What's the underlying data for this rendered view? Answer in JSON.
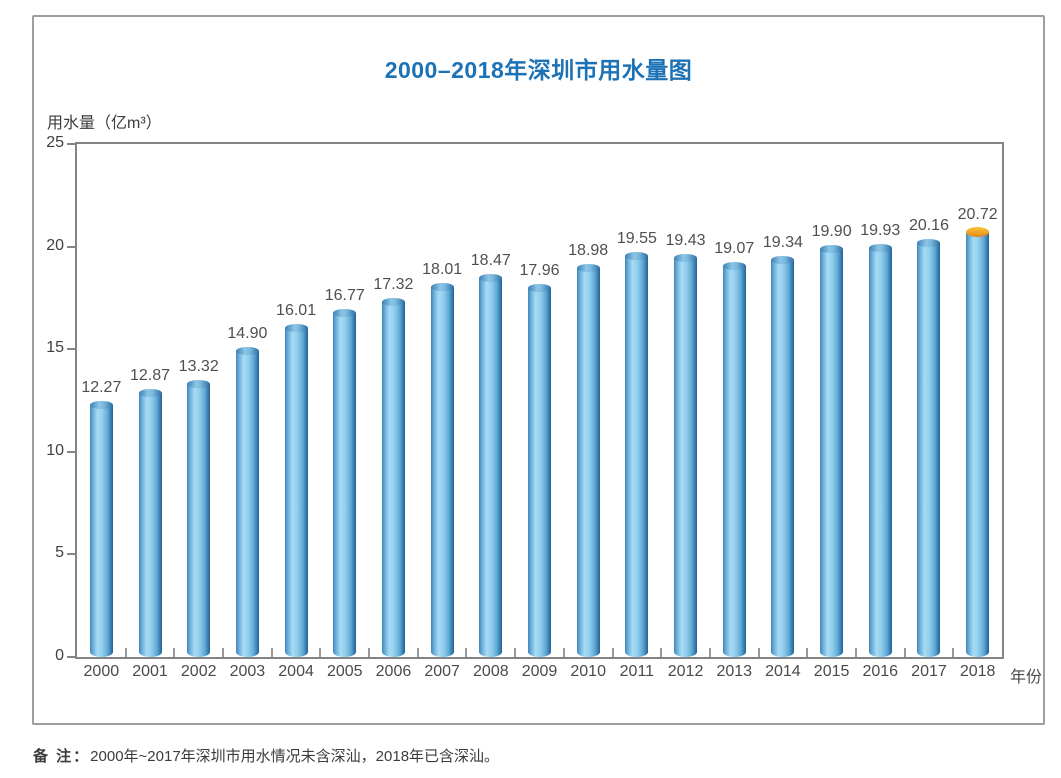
{
  "chart": {
    "title": "2000–2018年深圳市用水量图",
    "y_axis_title": "用水量（亿m³）",
    "x_axis_title": "年份"
  },
  "note": {
    "label": "备 注：",
    "text": "2000年~2017年深圳市用水情况未含深汕，2018年已含深汕。"
  },
  "colors": {
    "title_blue": "#1d72b5",
    "bar_light": "#a8dcf4",
    "bar_dark": "#2a6ea6",
    "highlight_cap_top": "#f8c53e",
    "highlight_cap_mid": "#f0a426",
    "highlight_cap_bottom": "#d9881c",
    "axis_gray": "#848484",
    "text_gray": "#4a4a4a",
    "card_border": "#9e9e9e"
  },
  "chart_data": {
    "type": "bar",
    "title": "2000–2018年深圳市用水量图",
    "xlabel": "年份",
    "ylabel": "用水量（亿m³）",
    "categories": [
      "2000",
      "2001",
      "2002",
      "2003",
      "2004",
      "2005",
      "2006",
      "2007",
      "2008",
      "2009",
      "2010",
      "2011",
      "2012",
      "2013",
      "2014",
      "2015",
      "2016",
      "2017",
      "2018"
    ],
    "values": [
      12.27,
      12.87,
      13.32,
      14.9,
      16.01,
      16.77,
      17.32,
      18.01,
      18.47,
      17.96,
      18.98,
      19.55,
      19.43,
      19.07,
      19.34,
      19.9,
      19.93,
      20.16,
      20.72
    ],
    "value_label_decimals": 2,
    "ylim": [
      0,
      25
    ],
    "yticks": [
      0,
      5,
      10,
      15,
      20,
      25
    ],
    "grid": false,
    "legend_position": "none",
    "bar_style": "cylinder-gradient",
    "highlight": {
      "category": "2018",
      "cap_color": "#f0a426",
      "description": "orange cap on 2018 bar"
    }
  }
}
